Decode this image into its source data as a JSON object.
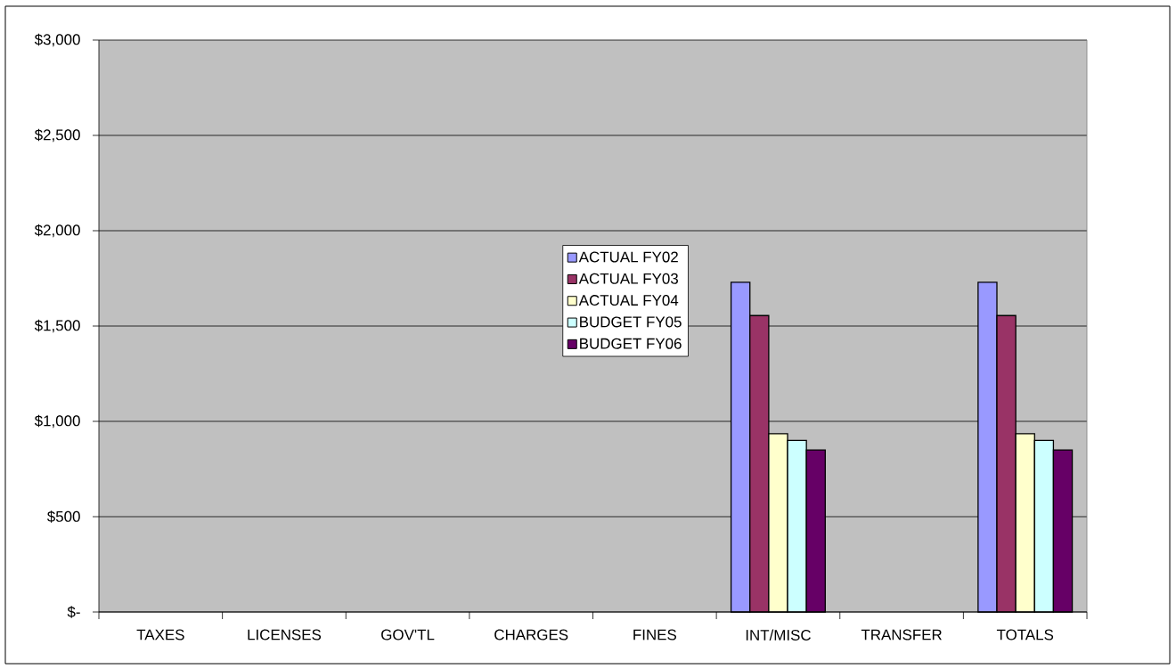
{
  "chart_data": {
    "type": "bar",
    "categories": [
      "TAXES",
      "LICENSES",
      "GOV'TL",
      "CHARGES",
      "FINES",
      "INT/MISC",
      "TRANSFER",
      "TOTALS"
    ],
    "series": [
      {
        "name": "ACTUAL FY02",
        "color": "#9999ff",
        "values": [
          null,
          null,
          null,
          null,
          null,
          1730,
          null,
          1730
        ]
      },
      {
        "name": "ACTUAL FY03",
        "color": "#993366",
        "values": [
          null,
          null,
          null,
          null,
          null,
          1555,
          null,
          1555
        ]
      },
      {
        "name": "ACTUAL FY04",
        "color": "#ffffcc",
        "values": [
          null,
          null,
          null,
          null,
          null,
          935,
          null,
          935
        ]
      },
      {
        "name": "BUDGET FY05",
        "color": "#ccffff",
        "values": [
          null,
          null,
          null,
          null,
          null,
          900,
          null,
          900
        ]
      },
      {
        "name": "BUDGET FY06",
        "color": "#660066",
        "values": [
          null,
          null,
          null,
          null,
          null,
          850,
          null,
          850
        ]
      }
    ],
    "ylim": [
      0,
      3000
    ],
    "yticks": [
      {
        "value": 0,
        "label": "$-"
      },
      {
        "value": 500,
        "label": "$500"
      },
      {
        "value": 1000,
        "label": "$1,000"
      },
      {
        "value": 1500,
        "label": "$1,500"
      },
      {
        "value": 2000,
        "label": "$2,000"
      },
      {
        "value": 2500,
        "label": "$2,500"
      },
      {
        "value": 3000,
        "label": "$3,000"
      }
    ],
    "grid": "y",
    "legend": "center"
  }
}
